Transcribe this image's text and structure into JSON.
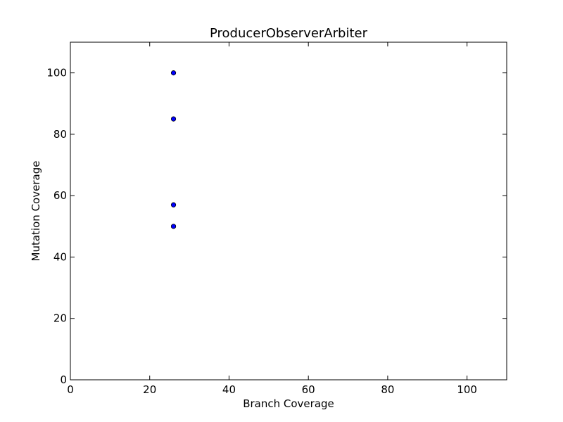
{
  "chart_data": {
    "type": "scatter",
    "title": "ProducerObserverArbiter",
    "xlabel": "Branch Coverage",
    "ylabel": "Mutation Coverage",
    "xlim": [
      0,
      110
    ],
    "ylim": [
      0,
      110
    ],
    "xticks": [
      0,
      20,
      40,
      60,
      80,
      100
    ],
    "yticks": [
      0,
      20,
      40,
      60,
      80,
      100
    ],
    "grid": false,
    "marker_color": "#0000ff",
    "points": [
      {
        "x": 26,
        "y": 100
      },
      {
        "x": 26,
        "y": 85
      },
      {
        "x": 26,
        "y": 57
      },
      {
        "x": 26,
        "y": 50
      }
    ]
  }
}
